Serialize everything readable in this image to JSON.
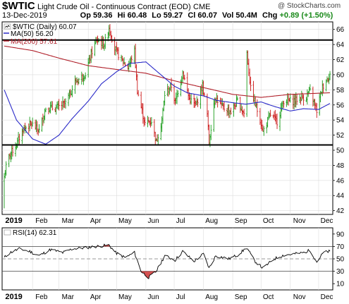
{
  "header": {
    "symbol": "$WTIC",
    "description": "Light Crude Oil - Continuous Contract (EOD)",
    "exchange": "CME",
    "copyright": "@ StockCharts.com",
    "date": "13-Dec-2019",
    "open_label": "Op",
    "open": "59.36",
    "high_label": "Hi",
    "high": "60.48",
    "low_label": "Lo",
    "low": "59.27",
    "close_label": "Cl",
    "close": "60.07",
    "volume_label": "Vol",
    "volume": "50.4M",
    "change_label": "Chg",
    "change": "+0.89 (+1.50%)"
  },
  "legend": {
    "price": "$WTIC (Daily) 60.07",
    "ma50": "MA(50) 56.20",
    "ma200": "MA(200) 57.61",
    "rsi": "RSI(14) 62.31"
  },
  "colors": {
    "up_bar": "#1a9c1a",
    "down_bar": "#cc1a1a",
    "ma50": "#2a2ac8",
    "ma200": "#b0202a",
    "rsi_line": "#000000",
    "rsi_fill": "#cc3333"
  },
  "chart_data": [
    {
      "type": "ohlc",
      "x": [
        "2019-01-02",
        "2019-12-13"
      ],
      "x_tick_labels": [
        "2019",
        "Feb",
        "Mar",
        "Apr",
        "May",
        "Jun",
        "Jul",
        "Aug",
        "Sep",
        "Oct",
        "Nov",
        "Dec"
      ],
      "y_ticks": [
        42,
        44,
        46,
        48,
        50,
        52,
        54,
        56,
        58,
        60,
        62,
        64,
        66
      ],
      "ylim": [
        41.5,
        67
      ],
      "price_anchors": [
        [
          "2019-01-02",
          46.5
        ],
        [
          "2019-01-04",
          47.8
        ],
        [
          "2019-01-08",
          49.5
        ],
        [
          "2019-01-14",
          50.5
        ],
        [
          "2019-01-22",
          52.8
        ],
        [
          "2019-01-31",
          53.5
        ],
        [
          "2019-02-08",
          52.6
        ],
        [
          "2019-02-15",
          55.6
        ],
        [
          "2019-02-26",
          55.6
        ],
        [
          "2019-03-08",
          56.2
        ],
        [
          "2019-03-18",
          59.0
        ],
        [
          "2019-03-29",
          60.1
        ],
        [
          "2019-04-05",
          63.1
        ],
        [
          "2019-04-10",
          64.6
        ],
        [
          "2019-04-18",
          64.0
        ],
        [
          "2019-04-23",
          66.3
        ],
        [
          "2019-04-29",
          63.5
        ],
        [
          "2019-05-06",
          62.0
        ],
        [
          "2019-05-13",
          61.0
        ],
        [
          "2019-05-20",
          63.1
        ],
        [
          "2019-05-23",
          57.9
        ],
        [
          "2019-05-31",
          53.5
        ],
        [
          "2019-06-07",
          53.9
        ],
        [
          "2019-06-12",
          51.1
        ],
        [
          "2019-06-18",
          54.0
        ],
        [
          "2019-06-21",
          57.4
        ],
        [
          "2019-06-28",
          58.5
        ],
        [
          "2019-07-02",
          56.3
        ],
        [
          "2019-07-10",
          60.4
        ],
        [
          "2019-07-17",
          56.8
        ],
        [
          "2019-07-24",
          55.9
        ],
        [
          "2019-07-31",
          58.6
        ],
        [
          "2019-08-05",
          54.7
        ],
        [
          "2019-08-07",
          51.1
        ],
        [
          "2019-08-13",
          57.1
        ],
        [
          "2019-08-21",
          55.7
        ],
        [
          "2019-08-30",
          55.1
        ],
        [
          "2019-09-06",
          56.5
        ],
        [
          "2019-09-13",
          54.9
        ],
        [
          "2019-09-16",
          62.9
        ],
        [
          "2019-09-20",
          58.1
        ],
        [
          "2019-09-30",
          54.1
        ],
        [
          "2019-10-03",
          52.5
        ],
        [
          "2019-10-11",
          54.7
        ],
        [
          "2019-10-18",
          53.8
        ],
        [
          "2019-10-25",
          56.6
        ],
        [
          "2019-11-04",
          56.5
        ],
        [
          "2019-11-11",
          56.9
        ],
        [
          "2019-11-18",
          57.1
        ],
        [
          "2019-11-22",
          57.8
        ],
        [
          "2019-11-29",
          55.2
        ],
        [
          "2019-12-05",
          58.4
        ],
        [
          "2019-12-13",
          60.07
        ]
      ],
      "first_bar_low": 42.3,
      "ma50_anchors": [
        [
          "2019-01-02",
          58.0
        ],
        [
          "2019-01-15",
          54.0
        ],
        [
          "2019-02-01",
          51.5
        ],
        [
          "2019-02-15",
          50.8
        ],
        [
          "2019-03-01",
          52.0
        ],
        [
          "2019-03-15",
          54.2
        ],
        [
          "2019-04-01",
          56.5
        ],
        [
          "2019-04-15",
          58.8
        ],
        [
          "2019-05-01",
          60.4
        ],
        [
          "2019-05-15",
          61.5
        ],
        [
          "2019-06-01",
          61.7
        ],
        [
          "2019-06-15",
          60.2
        ],
        [
          "2019-07-01",
          58.5
        ],
        [
          "2019-07-15",
          57.6
        ],
        [
          "2019-08-01",
          57.2
        ],
        [
          "2019-08-15",
          56.6
        ],
        [
          "2019-09-01",
          56.3
        ],
        [
          "2019-09-15",
          56.1
        ],
        [
          "2019-10-01",
          56.4
        ],
        [
          "2019-10-15",
          55.8
        ],
        [
          "2019-11-01",
          55.2
        ],
        [
          "2019-11-15",
          55.5
        ],
        [
          "2019-12-01",
          55.4
        ],
        [
          "2019-12-13",
          56.2
        ]
      ],
      "ma200_anchors": [
        [
          "2019-01-02",
          63.8
        ],
        [
          "2019-02-01",
          63.2
        ],
        [
          "2019-03-01",
          62.2
        ],
        [
          "2019-04-01",
          61.2
        ],
        [
          "2019-05-01",
          60.7
        ],
        [
          "2019-06-01",
          60.2
        ],
        [
          "2019-07-01",
          59.2
        ],
        [
          "2019-08-01",
          58.3
        ],
        [
          "2019-09-01",
          57.4
        ],
        [
          "2019-10-01",
          57.0
        ],
        [
          "2019-11-01",
          57.4
        ],
        [
          "2019-12-13",
          57.61
        ]
      ],
      "horizontal_lines": [
        64.6,
        50.7
      ]
    },
    {
      "type": "line",
      "name": "RSI(14)",
      "y_ticks": [
        10,
        30,
        50,
        70,
        90
      ],
      "ylim": [
        0,
        100
      ],
      "reference_lines": [
        70,
        50,
        30
      ],
      "rsi_anchors": [
        [
          "2019-01-02",
          52
        ],
        [
          "2019-01-08",
          60
        ],
        [
          "2019-01-18",
          66
        ],
        [
          "2019-01-29",
          62
        ],
        [
          "2019-02-08",
          55
        ],
        [
          "2019-02-20",
          65
        ],
        [
          "2019-03-05",
          60
        ],
        [
          "2019-03-15",
          66
        ],
        [
          "2019-03-29",
          68
        ],
        [
          "2019-04-10",
          70
        ],
        [
          "2019-04-23",
          72
        ],
        [
          "2019-04-30",
          60
        ],
        [
          "2019-05-10",
          52
        ],
        [
          "2019-05-20",
          60
        ],
        [
          "2019-05-27",
          30
        ],
        [
          "2019-06-04",
          20
        ],
        [
          "2019-06-12",
          30
        ],
        [
          "2019-06-21",
          55
        ],
        [
          "2019-07-02",
          48
        ],
        [
          "2019-07-10",
          62
        ],
        [
          "2019-07-22",
          46
        ],
        [
          "2019-08-01",
          58
        ],
        [
          "2019-08-07",
          35
        ],
        [
          "2019-08-14",
          55
        ],
        [
          "2019-08-28",
          50
        ],
        [
          "2019-09-06",
          56
        ],
        [
          "2019-09-16",
          68
        ],
        [
          "2019-09-24",
          47
        ],
        [
          "2019-10-03",
          35
        ],
        [
          "2019-10-15",
          50
        ],
        [
          "2019-10-25",
          56
        ],
        [
          "2019-11-05",
          58
        ],
        [
          "2019-11-15",
          60
        ],
        [
          "2019-11-22",
          64
        ],
        [
          "2019-11-29",
          45
        ],
        [
          "2019-12-06",
          60
        ],
        [
          "2019-12-13",
          62.31
        ]
      ]
    }
  ]
}
